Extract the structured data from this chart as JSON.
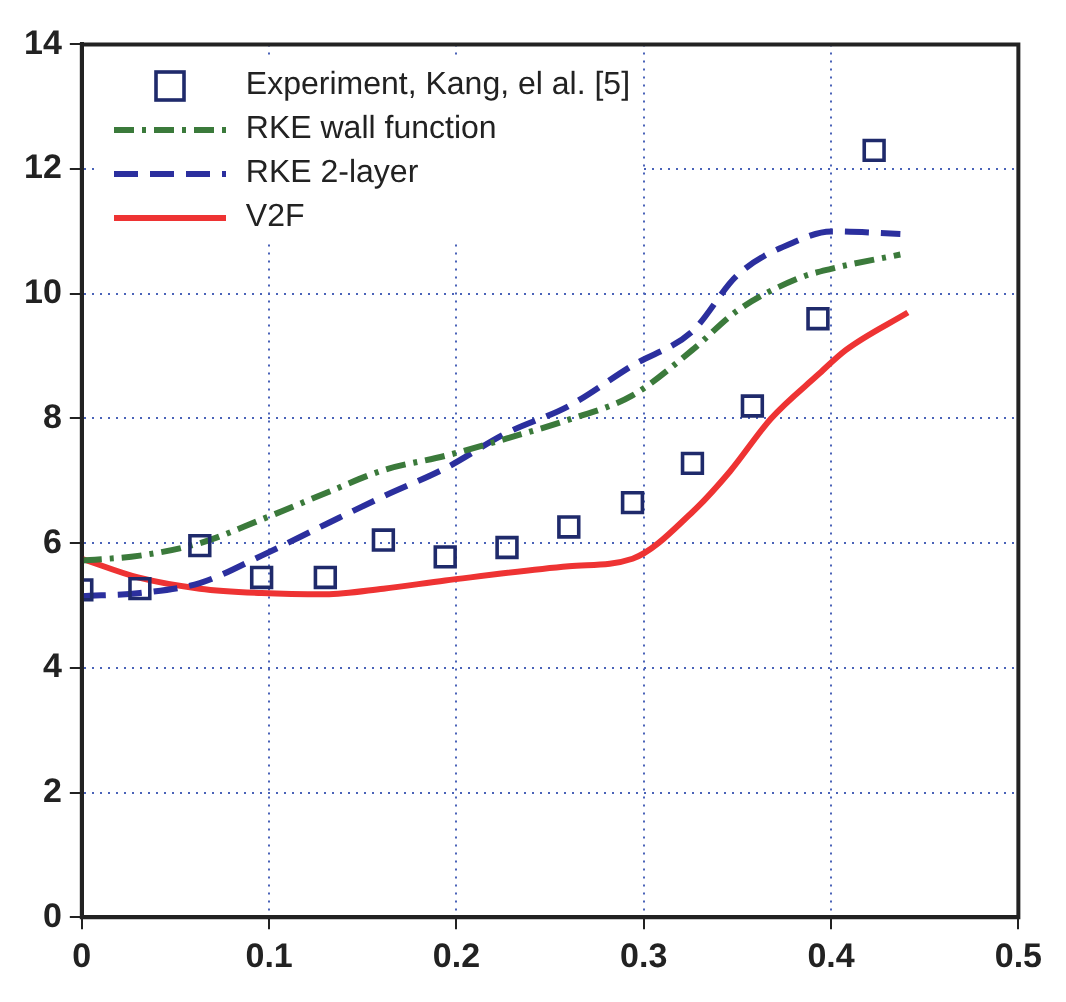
{
  "chart_data": {
    "type": "line",
    "xlim": [
      0,
      0.5
    ],
    "xticks": [
      0,
      0.1,
      0.2,
      0.3,
      0.4,
      0.5
    ],
    "ylim": [
      0,
      14
    ],
    "yticks": [
      0,
      2,
      4,
      6,
      8,
      10,
      12,
      14
    ],
    "grid": true,
    "legend": "top left",
    "series": [
      {
        "name": "Experiment, Kang, el al. [5]",
        "type": "scatter",
        "marker": "square",
        "color": "#1f2a6b",
        "x": [
          0,
          0.031,
          0.063,
          0.096,
          0.13,
          0.161,
          0.194,
          0.227,
          0.26,
          0.294,
          0.326,
          0.358,
          0.393,
          0.423
        ],
        "values": [
          5.25,
          5.27,
          5.96,
          5.45,
          5.45,
          6.05,
          5.78,
          5.93,
          6.26,
          6.65,
          7.28,
          8.2,
          9.6,
          12.3
        ]
      },
      {
        "name": "RKE wall function",
        "line_style": "dotted",
        "color": "#3b7a3b",
        "x": [
          0,
          0.031,
          0.063,
          0.096,
          0.13,
          0.161,
          0.194,
          0.227,
          0.26,
          0.294,
          0.326,
          0.35,
          0.382,
          0.4,
          0.437
        ],
        "values": [
          5.72,
          5.8,
          6.0,
          6.38,
          6.8,
          7.17,
          7.4,
          7.68,
          7.98,
          8.37,
          9.1,
          9.73,
          10.24,
          10.4,
          10.63
        ]
      },
      {
        "name": "RKE 2-layer",
        "line_style": "dashed",
        "color": "#2b2f9e",
        "x": [
          0,
          0.031,
          0.063,
          0.096,
          0.13,
          0.161,
          0.194,
          0.227,
          0.26,
          0.294,
          0.326,
          0.35,
          0.382,
          0.4,
          0.437
        ],
        "values": [
          5.15,
          5.2,
          5.36,
          5.8,
          6.3,
          6.75,
          7.2,
          7.77,
          8.2,
          8.85,
          9.4,
          10.3,
          10.85,
          11.0,
          10.96
        ]
      },
      {
        "name": "V2F",
        "line_style": "solid",
        "color": "#ee3333",
        "x": [
          0,
          0.03,
          0.063,
          0.096,
          0.13,
          0.161,
          0.194,
          0.26,
          0.294,
          0.326,
          0.346,
          0.368,
          0.393,
          0.408,
          0.441
        ],
        "values": [
          5.75,
          5.45,
          5.27,
          5.2,
          5.18,
          5.27,
          5.4,
          5.63,
          5.75,
          6.5,
          7.15,
          8.0,
          8.7,
          9.1,
          9.7
        ]
      }
    ]
  }
}
